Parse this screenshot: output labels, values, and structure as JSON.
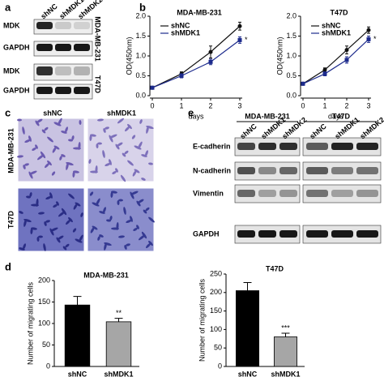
{
  "panel_labels": [
    "a",
    "b",
    "c",
    "d",
    "e"
  ],
  "blot_a": {
    "lanes": [
      "shNC",
      "shMDK1",
      "shMDK2"
    ],
    "rows": [
      "MDK",
      "GAPDH",
      "MDK",
      "GAPDH"
    ],
    "cell_lines": [
      "MDA-MB-231",
      "T47D"
    ]
  },
  "images_c": {
    "columns": [
      "shNC",
      "shMDK1"
    ],
    "rows": [
      "MDA-MB-231",
      "T47D"
    ]
  },
  "blot_e": {
    "groups": [
      "MDA-MB-231",
      "T47D"
    ],
    "lanes": [
      "shNC",
      "shMDK1",
      "shMDK2",
      "shNC",
      "shMDK1",
      "shMDK2"
    ],
    "rows": [
      "E-cadherin",
      "N-cadherin",
      "Vimentin",
      "GAPDH"
    ]
  },
  "chart_data": [
    {
      "type": "line",
      "title": "MDA-MB-231",
      "x_label": "days",
      "y_label": "OD(450nm)",
      "x": [
        0,
        1,
        2,
        3
      ],
      "xlim": [
        0,
        3
      ],
      "xticks": [
        0,
        1,
        2,
        3
      ],
      "ylim": [
        0,
        2
      ],
      "yticks": [
        {
          "value": 0,
          "label": "0.0"
        },
        0.5,
        {
          "value": 1,
          "label": "1.0"
        },
        1.5,
        {
          "value": 2,
          "label": "2.0"
        }
      ],
      "series": [
        {
          "name": "shNC",
          "color": "#111111",
          "values": [
            0.2,
            0.55,
            1.1,
            1.75
          ],
          "errors": [
            0.03,
            0.05,
            0.15,
            0.1
          ]
        },
        {
          "name": "shMDK1",
          "color": "#1c2a8c",
          "values": [
            0.2,
            0.5,
            0.85,
            1.4
          ],
          "errors": [
            0.03,
            0.05,
            0.07,
            0.08
          ]
        }
      ],
      "annotations": [
        "*"
      ]
    },
    {
      "type": "line",
      "title": "T47D",
      "x_label": "days",
      "y_label": "OD(450nm)",
      "x": [
        0,
        1,
        2,
        3
      ],
      "xlim": [
        0,
        3
      ],
      "xticks": [
        0,
        1,
        2,
        3
      ],
      "ylim": [
        0,
        2
      ],
      "yticks": [
        {
          "value": 0,
          "label": "0.0"
        },
        0.5,
        {
          "value": 1,
          "label": "1.0"
        },
        1.5,
        {
          "value": 2,
          "label": "2.0"
        }
      ],
      "series": [
        {
          "name": "shNC",
          "color": "#111111",
          "values": [
            0.3,
            0.65,
            1.15,
            1.65
          ],
          "errors": [
            0.03,
            0.05,
            0.1,
            0.08
          ]
        },
        {
          "name": "shMDK1",
          "color": "#1c2a8c",
          "values": [
            0.3,
            0.55,
            0.9,
            1.42
          ],
          "errors": [
            0.03,
            0.05,
            0.08,
            0.08
          ]
        }
      ],
      "annotations": [
        "*"
      ]
    },
    {
      "type": "bar",
      "title": "MDA-MB-231",
      "y_label": "Number of migrating cells",
      "categories": [
        "shNC",
        "shMDK1"
      ],
      "values": [
        143,
        104
      ],
      "errors": [
        20,
        8
      ],
      "colors": [
        "#000000",
        "#a6a6a6"
      ],
      "ylim": [
        0,
        200
      ],
      "yticks": [
        0,
        50,
        100,
        150,
        200
      ],
      "annotations": [
        "**"
      ]
    },
    {
      "type": "bar",
      "title": "T47D",
      "y_label": "Number of migrating cells",
      "categories": [
        "shNC",
        "shMDK1"
      ],
      "values": [
        205,
        80
      ],
      "errors": [
        22,
        10
      ],
      "colors": [
        "#000000",
        "#a6a6a6"
      ],
      "ylim": [
        0,
        250
      ],
      "yticks": [
        0,
        50,
        100,
        150,
        200,
        250
      ],
      "annotations": [
        "***"
      ]
    }
  ]
}
